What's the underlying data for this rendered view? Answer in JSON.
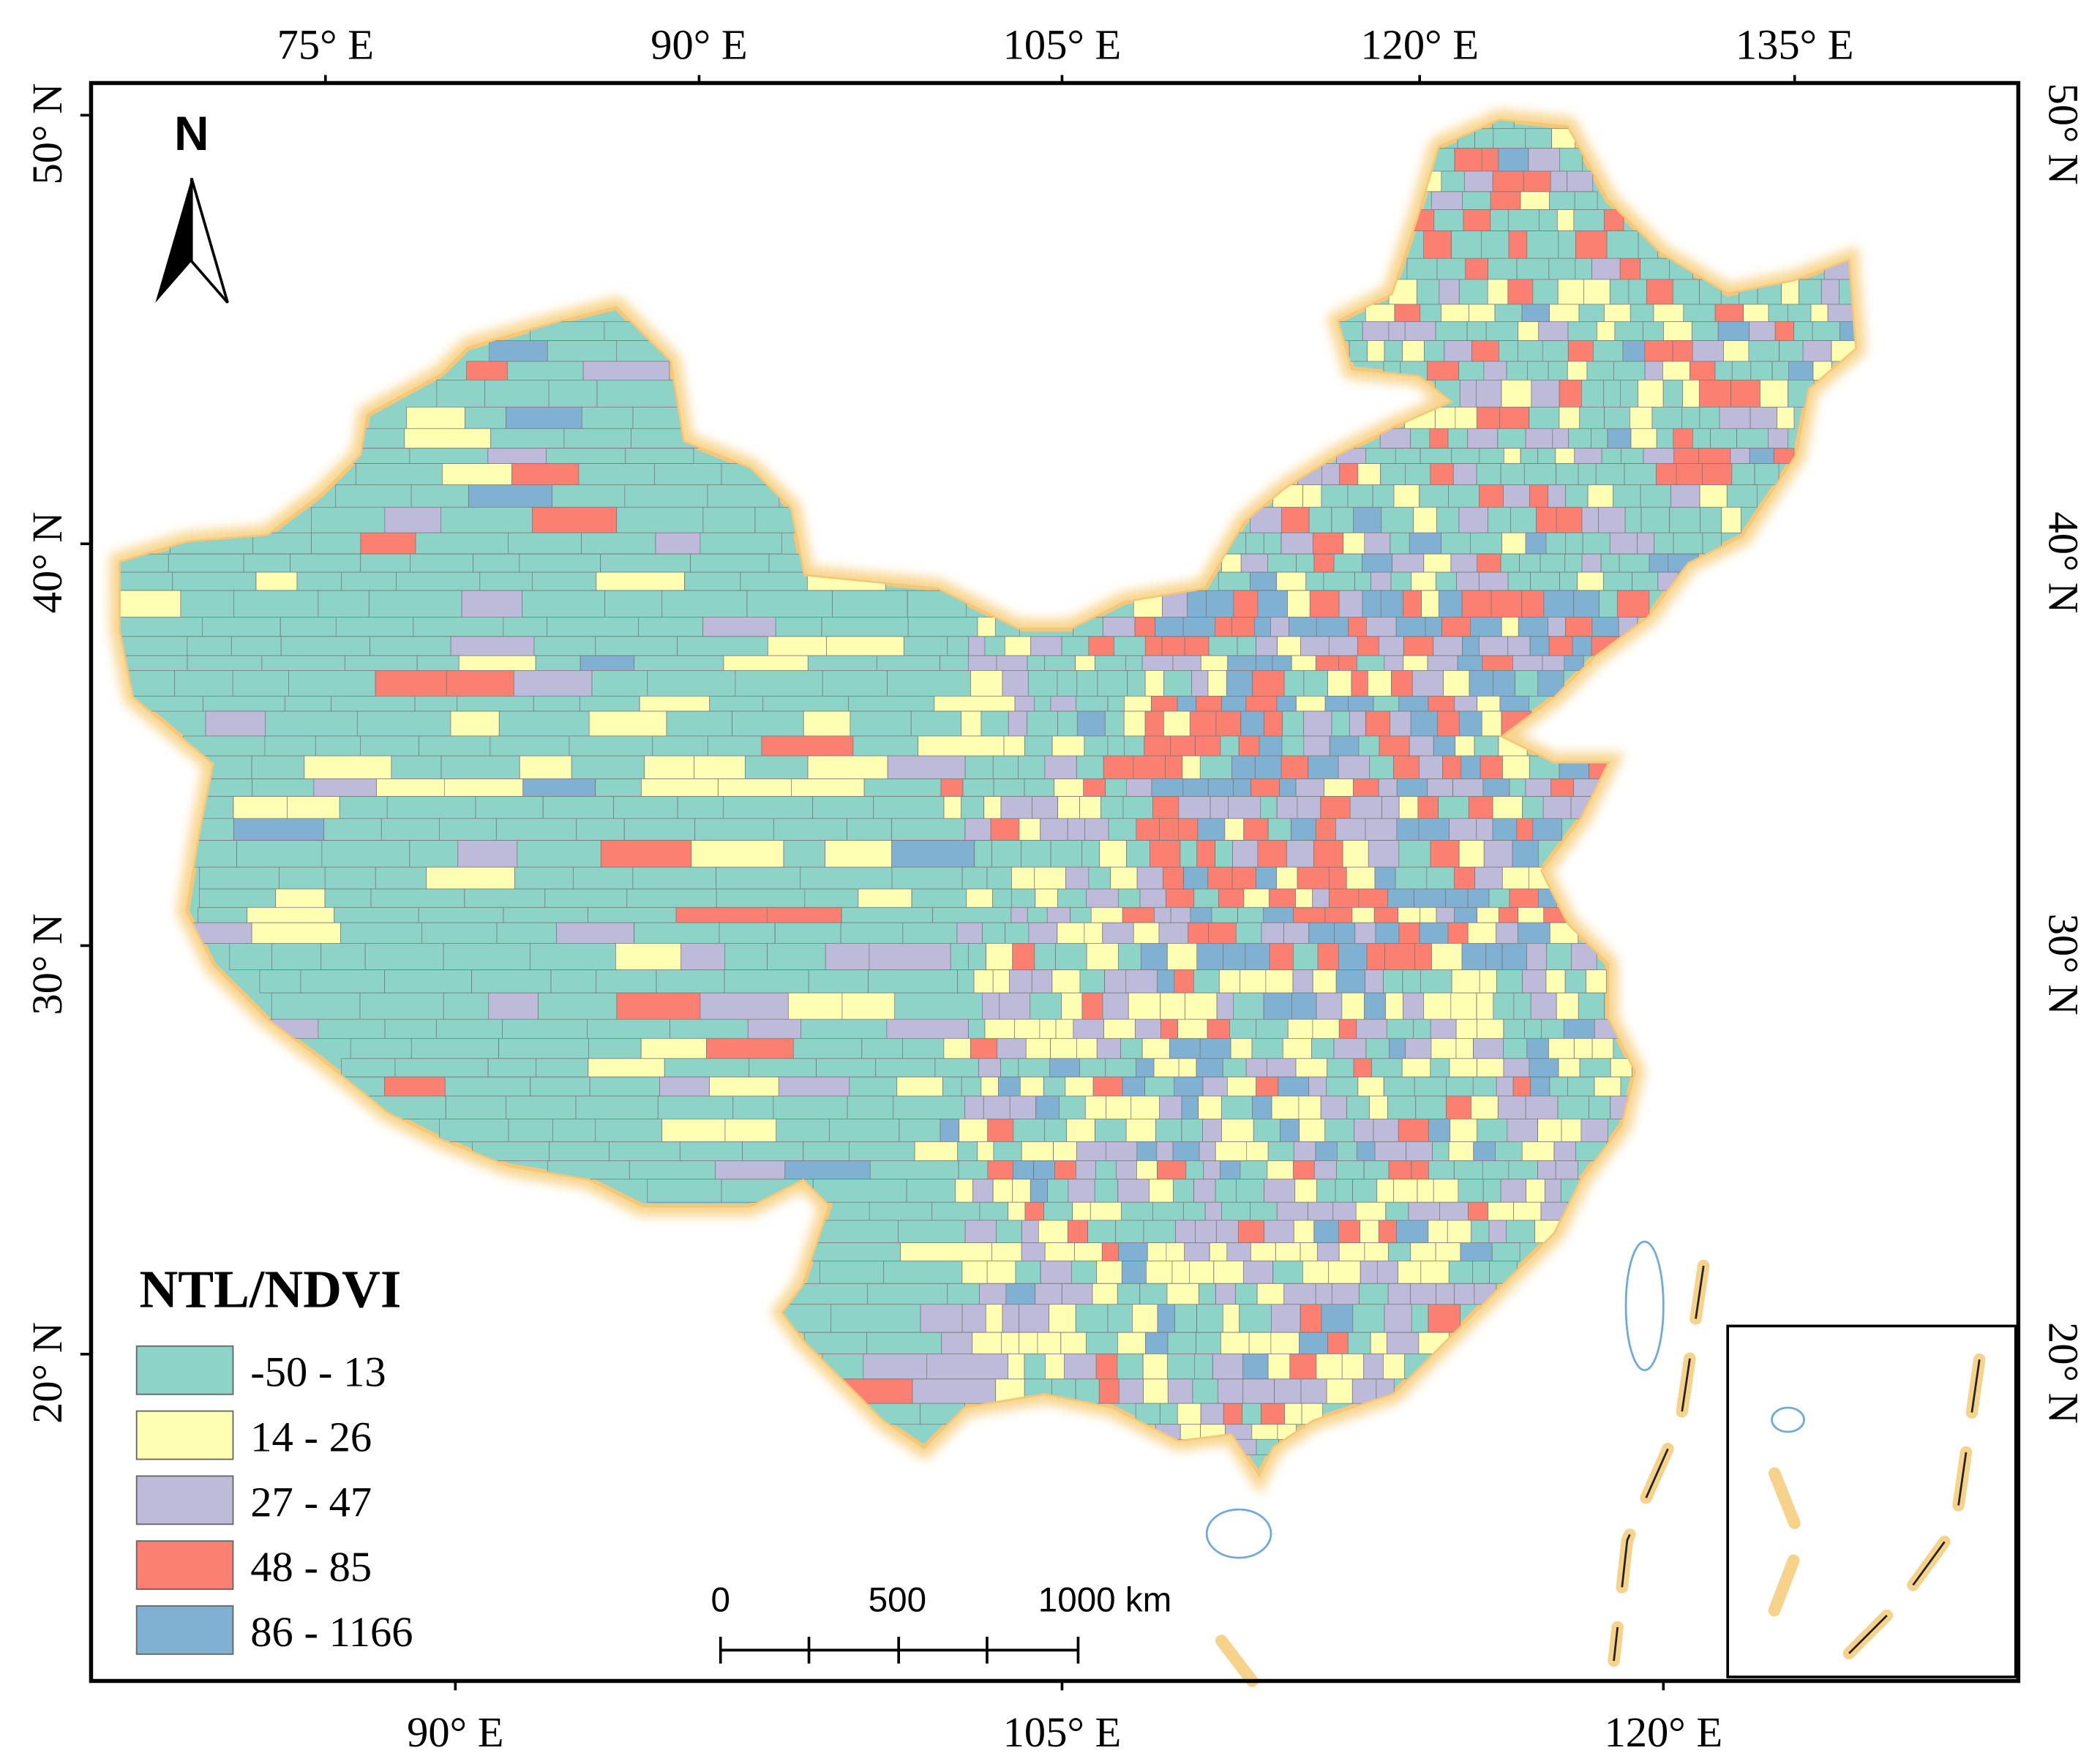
{
  "north": "N",
  "graticule": {
    "top": [
      "75° E",
      "90° E",
      "105° E",
      "120° E",
      "135° E"
    ],
    "bottom": [
      "90° E",
      "105° E",
      "120° E"
    ],
    "left": [
      "50° N",
      "40° N",
      "30° N",
      "20° N"
    ],
    "right": [
      "50° N",
      "40° N",
      "30° N",
      "20° N"
    ]
  },
  "legend": {
    "title": "NTL/NDVI",
    "items": [
      {
        "label": "-50 - 13",
        "color": "#8dd3c7"
      },
      {
        "label": "14 - 26",
        "color": "#ffffb3"
      },
      {
        "label": "27 - 47",
        "color": "#bebada"
      },
      {
        "label": "48 - 85",
        "color": "#fb8072"
      },
      {
        "label": "86 - 1166",
        "color": "#80b1d3"
      }
    ]
  },
  "scale_bar": {
    "labels": [
      "0",
      "500",
      "1000 km"
    ]
  }
}
